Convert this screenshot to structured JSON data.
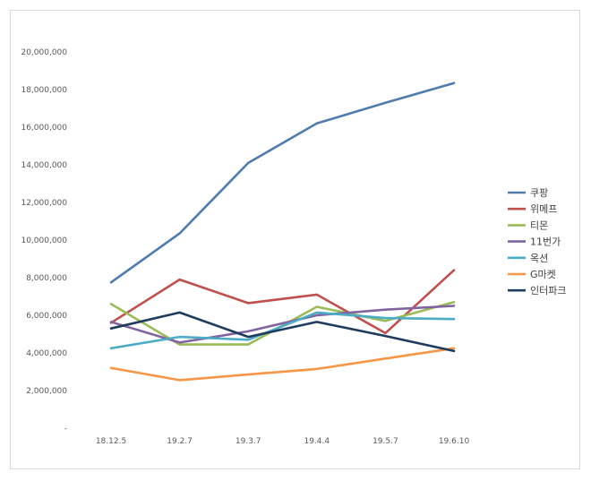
{
  "chart_data": {
    "type": "line",
    "categories": [
      "18.12.5",
      "19.2.7",
      "19.3.7",
      "19.4.4",
      "19.5.7",
      "19.6.10"
    ],
    "y_ticks": [
      "-",
      "2,000,000",
      "4,000,000",
      "6,000,000",
      "8,000,000",
      "10,000,000",
      "12,000,000",
      "14,000,000",
      "16,000,000",
      "18,000,000",
      "20,000,000"
    ],
    "ylim": [
      0,
      20000000
    ],
    "grid": false,
    "legend_position": "right",
    "series": [
      {
        "name": "쿠팡",
        "color": "#4F7BAF",
        "values": [
          7750000,
          10350000,
          14100000,
          16200000,
          17300000,
          18350000
        ]
      },
      {
        "name": "위메프",
        "color": "#C0504D",
        "values": [
          5600000,
          7900000,
          6650000,
          7100000,
          5050000,
          8400000
        ]
      },
      {
        "name": "티몬",
        "color": "#9BBB59",
        "values": [
          6600000,
          4450000,
          4450000,
          6450000,
          5700000,
          6700000
        ]
      },
      {
        "name": "11번가",
        "color": "#8064A2",
        "values": [
          5650000,
          4550000,
          5150000,
          6000000,
          6300000,
          6500000
        ]
      },
      {
        "name": "옥션",
        "color": "#4BACC6",
        "values": [
          4250000,
          4850000,
          4700000,
          6150000,
          5850000,
          5800000
        ]
      },
      {
        "name": "G마켓",
        "color": "#F79646",
        "values": [
          3200000,
          2550000,
          2850000,
          3150000,
          3700000,
          4250000
        ]
      },
      {
        "name": "인터파크",
        "color": "#1F3B5E",
        "values": [
          5300000,
          6150000,
          4850000,
          5650000,
          4900000,
          4100000
        ]
      }
    ]
  }
}
